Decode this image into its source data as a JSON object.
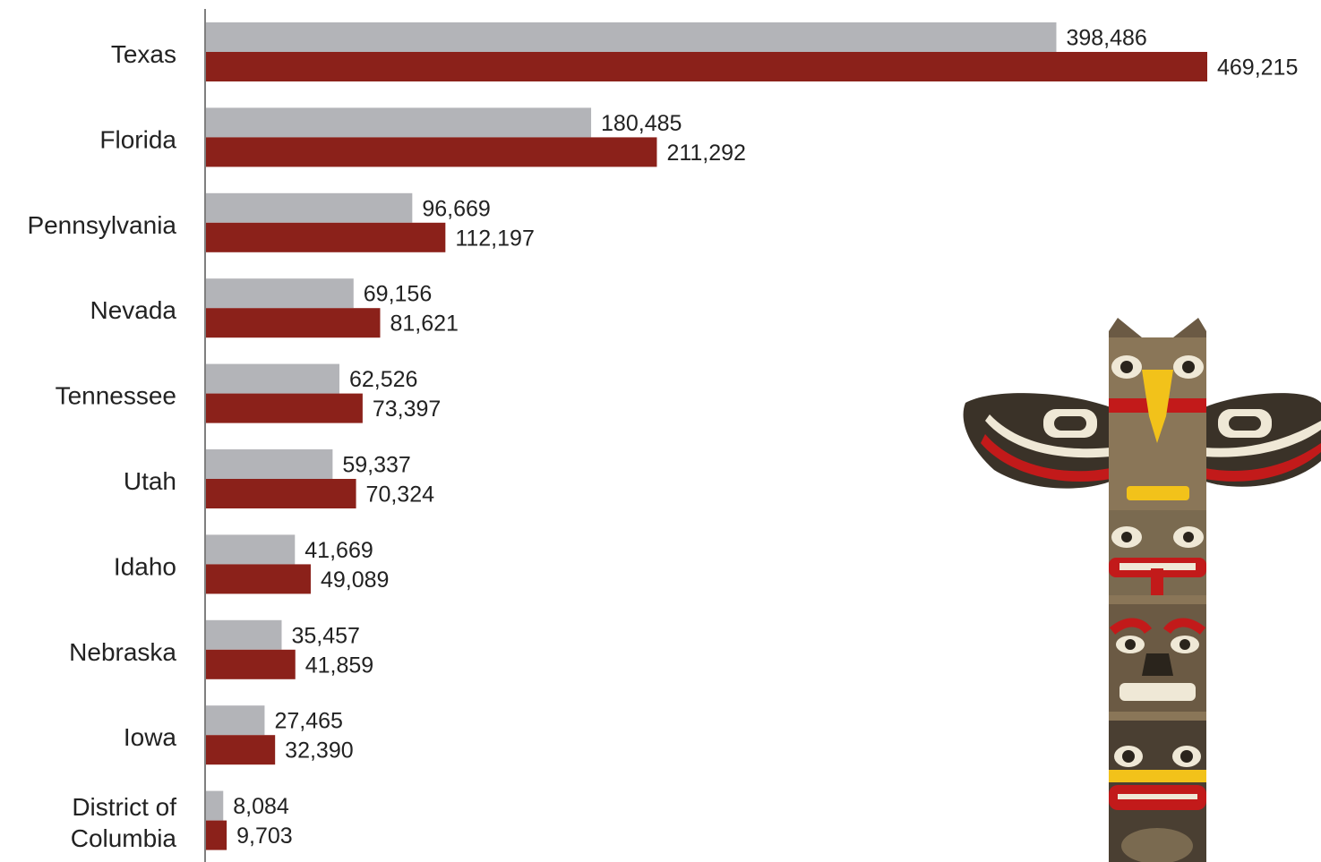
{
  "chart_data": {
    "type": "bar",
    "orientation": "horizontal",
    "categories": [
      "Texas",
      "Florida",
      "Pennsylvania",
      "Nevada",
      "Tennessee",
      "Utah",
      "Idaho",
      "Nebraska",
      "Iowa",
      "District of\nColumbia"
    ],
    "series": [
      {
        "color": "#b3b4b8",
        "values": [
          398486,
          180485,
          96669,
          69156,
          62526,
          59337,
          41669,
          35457,
          27465,
          8084
        ]
      },
      {
        "color": "#8b211a",
        "values": [
          469215,
          211292,
          112197,
          81621,
          73397,
          70324,
          49089,
          41859,
          32390,
          9703
        ]
      }
    ],
    "value_labels": [
      [
        "398,486",
        "180,485",
        "96,669",
        "69,156",
        "62,526",
        "59,337",
        "41,669",
        "35,457",
        "27,465",
        "8,084"
      ],
      [
        "469,215",
        "211,292",
        "112,197",
        "81,621",
        "73,397",
        "70,324",
        "49,089",
        "41,859",
        "32,390",
        "9,703"
      ]
    ],
    "grid": false,
    "legend": "none",
    "axis_line_color": "#555555"
  },
  "decoration": {
    "icon": "totem-pole-icon"
  }
}
